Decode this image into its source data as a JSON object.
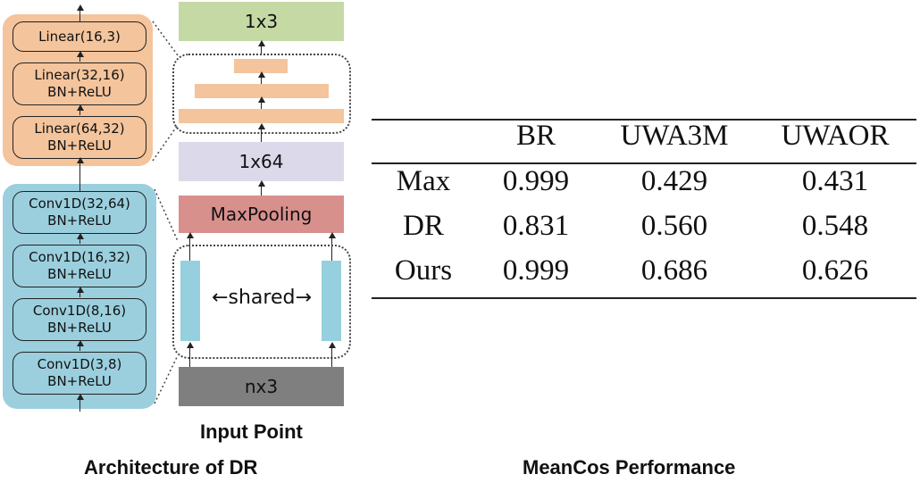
{
  "architecture": {
    "head_layers": [
      {
        "line1": "Linear(16,3)",
        "line2": ""
      },
      {
        "line1": "Linear(32,16)",
        "line2": "BN+ReLU"
      },
      {
        "line1": "Linear(64,32)",
        "line2": "BN+ReLU"
      }
    ],
    "encoder_layers": [
      {
        "line1": "Conv1D(32,64)",
        "line2": "BN+ReLU"
      },
      {
        "line1": "Conv1D(16,32)",
        "line2": "BN+ReLU"
      },
      {
        "line1": "Conv1D(8,16)",
        "line2": "BN+ReLU"
      },
      {
        "line1": "Conv1D(3,8)",
        "line2": "BN+ReLU"
      }
    ],
    "output_block": "1x3",
    "feature_block": "1x64",
    "pooling_block": "MaxPooling",
    "input_block": "nx3",
    "shared_label": "shared",
    "input_caption": "Input Point",
    "caption": "Architecture of DR",
    "colors": {
      "head": "#f4c49c",
      "encoder": "#9bcfde",
      "output": "#c5d9a5",
      "feature": "#dcd9ea",
      "pooling": "#d8908d",
      "input": "#7f7f7f"
    }
  },
  "table": {
    "caption": "MeanCos Performance",
    "columns": [
      "",
      "BR",
      "UWA3M",
      "UWAOR"
    ],
    "rows": [
      [
        "Max",
        "0.999",
        "0.429",
        "0.431"
      ],
      [
        "DR",
        "0.831",
        "0.560",
        "0.548"
      ],
      [
        "Ours",
        "0.999",
        "0.686",
        "0.626"
      ]
    ]
  }
}
